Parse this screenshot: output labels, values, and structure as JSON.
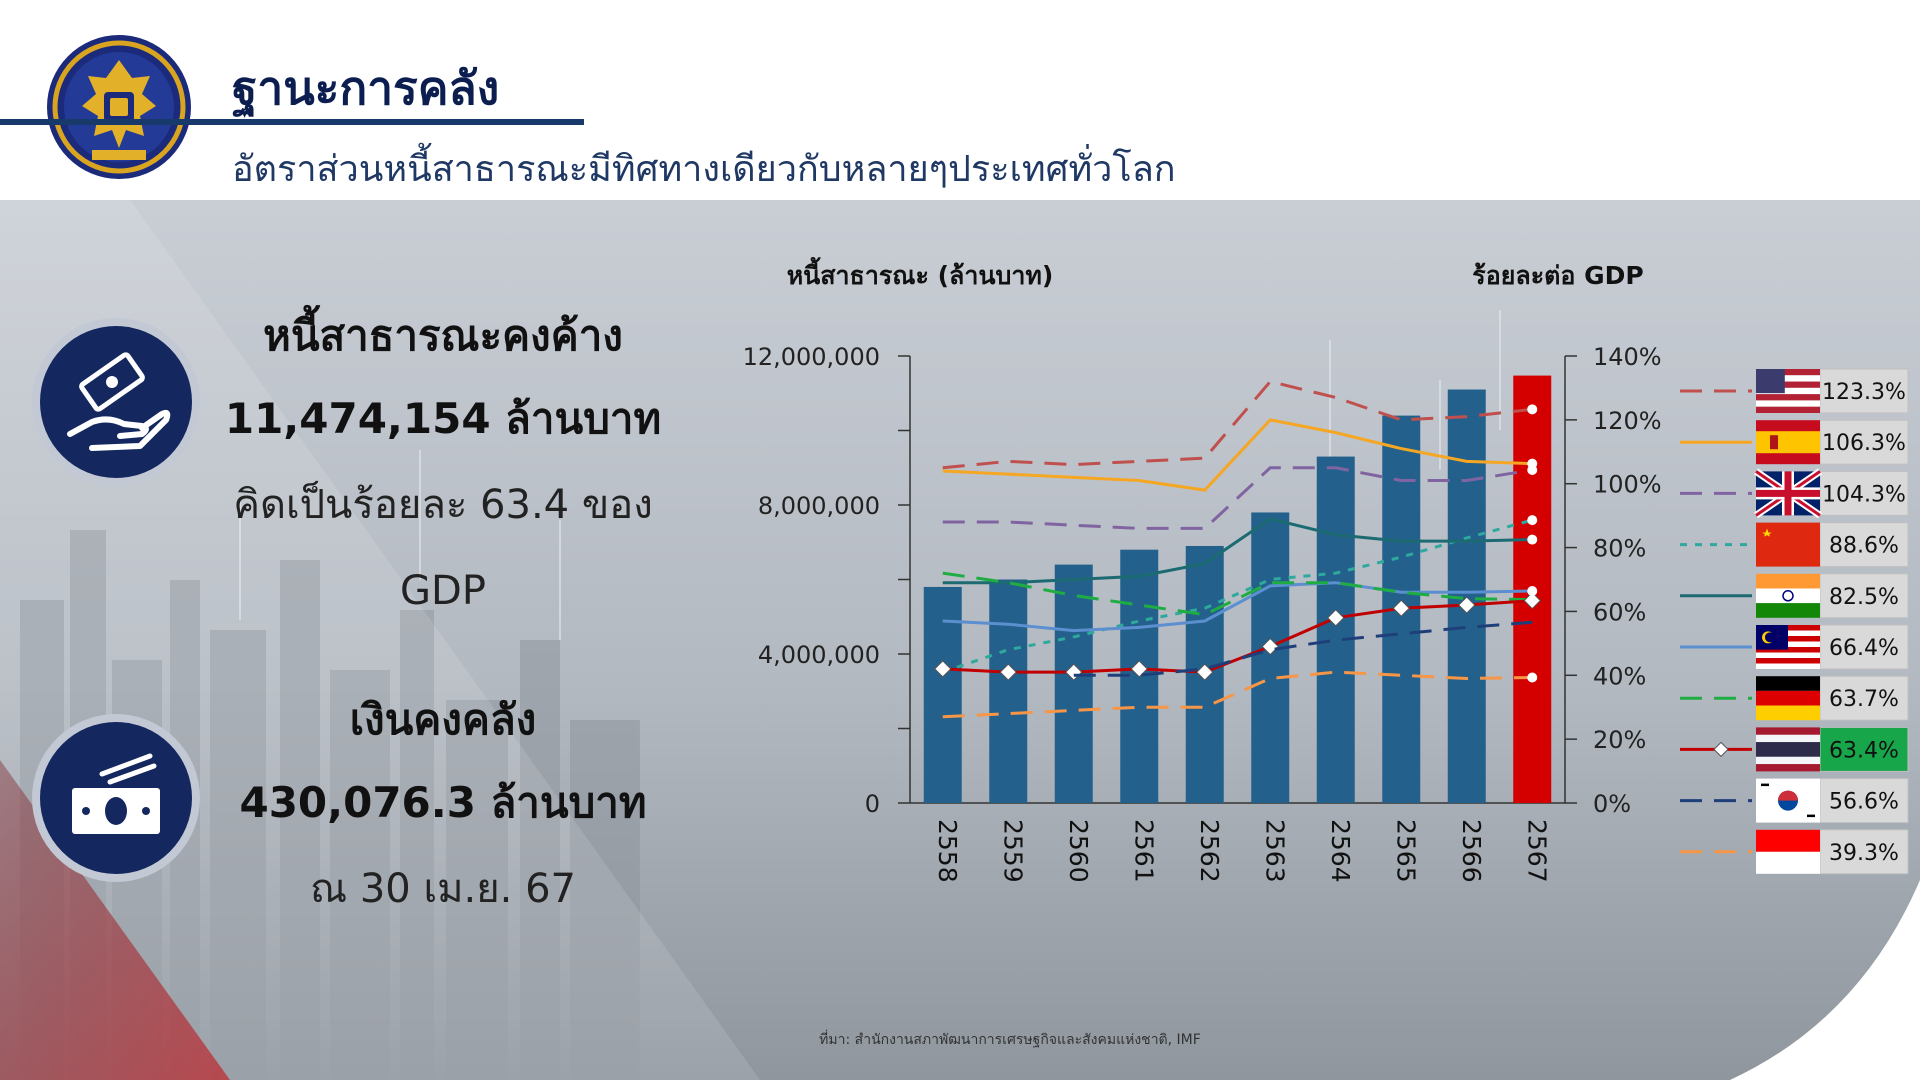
{
  "header": {
    "title": "ฐานะการคลัง",
    "subtitle": "อัตราส่วนหนี้สาธารณะมีทิศทางเดียวกับหลายๆประเทศทั่วโลก"
  },
  "stats": {
    "debt": {
      "heading": "หนี้สาธารณะคงค้าง",
      "value": "11,474,154 ล้านบาท",
      "note_line1": "คิดเป็นร้อยละ 63.4 ของ",
      "note_line2": "GDP"
    },
    "treasury": {
      "heading": "เงินคงคลัง",
      "value": "430,076.3 ล้านบาท",
      "note": "ณ 30 เม.ย. 67"
    }
  },
  "colors": {
    "bar": "#23618c",
    "bar_highlight": "#d40000",
    "header_text": "#0b1e4f",
    "icon_circle": "#14275e",
    "thailand_badge": "#18a64a"
  },
  "icons": {
    "seal": "royal-thai-garuda-seal-icon",
    "debt": "hand-holding-money-icon",
    "treasury": "banknote-stack-icon"
  },
  "chart_data": {
    "type": "bar",
    "left_axis_title": "หนี้สาธารณะ (ล้านบาท)",
    "right_axis_title": "ร้อยละต่อ GDP",
    "categories": [
      "2558",
      "2559",
      "2560",
      "2561",
      "2562",
      "2563",
      "2564",
      "2565",
      "2566",
      "2567"
    ],
    "bars": {
      "values": [
        5800000,
        6000000,
        6400000,
        6800000,
        6900000,
        7800000,
        9300000,
        10400000,
        11100000,
        11474154
      ]
    },
    "ylim": [
      0,
      12000000
    ],
    "yticks": [
      0,
      4000000,
      8000000,
      12000000
    ],
    "ytick_labels": [
      "0",
      "4,000,000",
      "8,000,000",
      "12,000,000"
    ],
    "y2lim": [
      0,
      140
    ],
    "y2ticks": [
      0,
      20,
      40,
      60,
      80,
      100,
      120,
      140
    ],
    "y2tick_labels": [
      "0%",
      "20%",
      "40%",
      "60%",
      "80%",
      "100%",
      "120%",
      "140%"
    ],
    "series": [
      {
        "flag": "usa",
        "value_label": "123.3%",
        "color": "#c0504d",
        "dash": "long",
        "values": [
          105.0,
          107.0,
          106.0,
          107.0,
          108.0,
          132.0,
          127.0,
          120.0,
          121.0,
          123.3
        ]
      },
      {
        "flag": "spain",
        "value_label": "106.3%",
        "color": "#f5a623",
        "dash": "solid",
        "values": [
          104.0,
          103.0,
          102.0,
          101.0,
          98.0,
          120.0,
          116.0,
          111.0,
          107.0,
          106.3
        ]
      },
      {
        "flag": "uk",
        "value_label": "104.3%",
        "color": "#8064a2",
        "dash": "long",
        "values": [
          88.0,
          88.0,
          87.0,
          86.0,
          86.0,
          105.0,
          105.0,
          101.0,
          101.0,
          104.3
        ]
      },
      {
        "flag": "china",
        "value_label": "88.6%",
        "color": "#2fa89d",
        "dash": "short",
        "values": [
          41.0,
          48.0,
          52.0,
          57.0,
          61.0,
          70.0,
          72.0,
          77.0,
          83.0,
          88.6
        ]
      },
      {
        "flag": "india",
        "value_label": "82.5%",
        "color": "#1c6b73",
        "dash": "solid",
        "values": [
          69.0,
          69.0,
          70.0,
          71.0,
          75.0,
          89.0,
          84.0,
          82.0,
          82.0,
          82.5
        ]
      },
      {
        "flag": "malaysia",
        "value_label": "66.4%",
        "color": "#5b8fd0",
        "dash": "solid",
        "values": [
          57.0,
          56.0,
          54.0,
          55.0,
          57.0,
          68.0,
          69.0,
          66.0,
          66.0,
          66.4
        ]
      },
      {
        "flag": "germany",
        "value_label": "63.7%",
        "color": "#1fad43",
        "dash": "long",
        "values": [
          72.0,
          69.0,
          65.0,
          62.0,
          59.0,
          69.0,
          69.0,
          66.0,
          64.0,
          63.7
        ]
      },
      {
        "flag": "thailand",
        "value_label": "63.4%",
        "color": "#c00000",
        "dash": "solid",
        "marker": "diamond",
        "values": [
          42.0,
          41.0,
          41.0,
          42.0,
          41.0,
          49.0,
          58.0,
          61.0,
          62.0,
          63.4
        ]
      },
      {
        "flag": "korea",
        "value_label": "56.6%",
        "color": "#1f3f7a",
        "dash": "long",
        "values": [
          null,
          null,
          40.0,
          40.0,
          42.0,
          48.0,
          51.0,
          53.0,
          55.0,
          56.6
        ]
      },
      {
        "flag": "indonesia",
        "value_label": "39.3%",
        "color": "#f79646",
        "dash": "long",
        "values": [
          27.0,
          28.0,
          29.0,
          30.0,
          30.0,
          39.0,
          41.0,
          40.0,
          39.0,
          39.3
        ]
      }
    ],
    "grid": false,
    "legend_position": "right",
    "source": "ที่มา: สำนักงานสภาพัฒนาการเศรษฐกิจและสังคมแห่งชาติ, IMF"
  }
}
